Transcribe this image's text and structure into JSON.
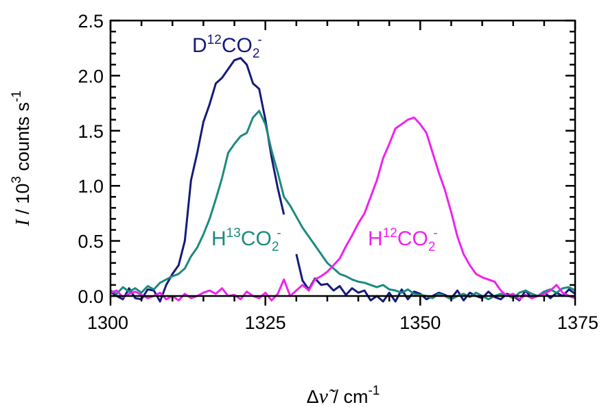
{
  "chart_data": {
    "type": "line",
    "xlim": [
      1300,
      1375
    ],
    "ylim": [
      0,
      2.5
    ],
    "xticks": [
      1300,
      1325,
      1350,
      1375
    ],
    "yticks": [
      0.0,
      0.5,
      1.0,
      1.5,
      2.0,
      2.5
    ],
    "xtick_labels": [
      "1300",
      "1325",
      "1350",
      "1375"
    ],
    "ytick_labels": [
      "0.0",
      "0.5",
      "1.0",
      "1.5",
      "2.0",
      "2.5"
    ],
    "xlabel": {
      "prefix": "Δ",
      "symbol": "ν̃",
      "unit": " / cm",
      "unit_sup": "-1"
    },
    "ylabel": {
      "symbol": "I",
      "pre": " / 10",
      "sup1": "3",
      "mid": " counts s",
      "sup2": "-1"
    },
    "grid": false,
    "legend": "none",
    "series": [
      {
        "name": "D12CO2-",
        "label": {
          "base": "D",
          "sup_iso": "12",
          "mid": "CO",
          "sub": "2",
          "sup_charge": "-"
        },
        "color": "#151a7a",
        "segments": [
          [
            [
              1300,
              0.04
            ],
            [
              1301,
              0.0
            ],
            [
              1302,
              -0.03
            ],
            [
              1303,
              0.07
            ],
            [
              1304,
              -0.02
            ],
            [
              1305,
              -0.03
            ],
            [
              1306,
              0.06
            ],
            [
              1307,
              0.05
            ],
            [
              1308,
              -0.05
            ],
            [
              1309,
              0.1
            ],
            [
              1310,
              0.2
            ],
            [
              1311,
              0.28
            ],
            [
              1312,
              0.5
            ],
            [
              1313,
              1.05
            ],
            [
              1314,
              1.3
            ],
            [
              1315,
              1.58
            ],
            [
              1316,
              1.74
            ],
            [
              1317,
              1.93
            ],
            [
              1318,
              1.98
            ],
            [
              1319,
              2.06
            ],
            [
              1320,
              2.14
            ],
            [
              1321,
              2.16
            ],
            [
              1322,
              2.1
            ],
            [
              1323,
              1.93
            ],
            [
              1324,
              1.88
            ],
            [
              1325,
              1.6
            ],
            [
              1326,
              1.26
            ],
            [
              1327,
              0.98
            ],
            [
              1328,
              0.74
            ]
          ],
          [
            [
              1330,
              0.38
            ],
            [
              1331,
              0.14
            ],
            [
              1332,
              0.06
            ],
            [
              1333,
              0.16
            ],
            [
              1334,
              0.1
            ],
            [
              1335,
              0.11
            ],
            [
              1336,
              0.05
            ],
            [
              1337,
              0.09
            ],
            [
              1338,
              0.01
            ],
            [
              1339,
              0.07
            ],
            [
              1340,
              0.03
            ],
            [
              1341,
              0.05
            ],
            [
              1342,
              -0.04
            ],
            [
              1343,
              0.0
            ],
            [
              1344,
              -0.05
            ],
            [
              1345,
              0.03
            ],
            [
              1346,
              -0.05
            ],
            [
              1347,
              0.06
            ],
            [
              1348,
              -0.03
            ],
            [
              1349,
              0.04
            ],
            [
              1350,
              0.02
            ],
            [
              1351,
              -0.03
            ],
            [
              1352,
              0.0
            ],
            [
              1353,
              0.03
            ],
            [
              1354,
              0.01
            ],
            [
              1355,
              -0.02
            ],
            [
              1356,
              0.05
            ],
            [
              1357,
              -0.04
            ],
            [
              1358,
              0.03
            ],
            [
              1359,
              0.0
            ],
            [
              1360,
              -0.02
            ],
            [
              1361,
              0.04
            ],
            [
              1362,
              -0.01
            ],
            [
              1363,
              -0.03
            ],
            [
              1364,
              0.02
            ],
            [
              1365,
              0.0
            ],
            [
              1366,
              -0.04
            ],
            [
              1367,
              0.05
            ],
            [
              1368,
              -0.02
            ],
            [
              1369,
              0.0
            ],
            [
              1370,
              0.04
            ],
            [
              1371,
              -0.02
            ],
            [
              1372,
              0.03
            ],
            [
              1373,
              0.0
            ],
            [
              1374,
              0.06
            ],
            [
              1375,
              0.02
            ]
          ]
        ]
      },
      {
        "name": "H13CO2-",
        "label": {
          "base": "H",
          "sup_iso": "13",
          "mid": "CO",
          "sub": "2",
          "sup_charge": "-"
        },
        "color": "#1b8a7e",
        "segments": [
          [
            [
              1300,
              0.05
            ],
            [
              1301,
              0.02
            ],
            [
              1302,
              0.08
            ],
            [
              1303,
              0.04
            ],
            [
              1304,
              0.07
            ],
            [
              1305,
              0.03
            ],
            [
              1306,
              0.09
            ],
            [
              1307,
              0.06
            ],
            [
              1308,
              0.12
            ],
            [
              1309,
              0.15
            ],
            [
              1310,
              0.18
            ],
            [
              1311,
              0.2
            ],
            [
              1312,
              0.25
            ],
            [
              1313,
              0.36
            ],
            [
              1314,
              0.44
            ],
            [
              1315,
              0.56
            ],
            [
              1316,
              0.7
            ],
            [
              1317,
              0.88
            ],
            [
              1318,
              1.07
            ],
            [
              1319,
              1.3
            ],
            [
              1320,
              1.38
            ],
            [
              1321,
              1.45
            ],
            [
              1322,
              1.48
            ],
            [
              1323,
              1.62
            ],
            [
              1324,
              1.68
            ],
            [
              1325,
              1.56
            ],
            [
              1326,
              1.32
            ],
            [
              1327,
              1.12
            ],
            [
              1328,
              0.9
            ],
            [
              1329,
              0.82
            ],
            [
              1330,
              0.72
            ],
            [
              1331,
              0.62
            ],
            [
              1332,
              0.54
            ],
            [
              1333,
              0.46
            ],
            [
              1334,
              0.38
            ],
            [
              1335,
              0.3
            ],
            [
              1336,
              0.25
            ],
            [
              1337,
              0.2
            ],
            [
              1338,
              0.18
            ],
            [
              1339,
              0.15
            ],
            [
              1340,
              0.13
            ],
            [
              1341,
              0.12
            ],
            [
              1342,
              0.1
            ],
            [
              1343,
              0.08
            ],
            [
              1344,
              0.1
            ],
            [
              1345,
              0.06
            ],
            [
              1346,
              0.05
            ],
            [
              1347,
              0.03
            ],
            [
              1348,
              0.06
            ],
            [
              1349,
              0.02
            ],
            [
              1350,
              0.01
            ],
            [
              1351,
              0.0
            ],
            [
              1352,
              -0.02
            ],
            [
              1353,
              0.02
            ],
            [
              1354,
              0.0
            ],
            [
              1355,
              -0.03
            ],
            [
              1356,
              0.0
            ],
            [
              1357,
              0.02
            ],
            [
              1358,
              -0.01
            ],
            [
              1359,
              0.03
            ],
            [
              1360,
              0.0
            ],
            [
              1361,
              -0.03
            ],
            [
              1362,
              0.0
            ],
            [
              1363,
              0.02
            ],
            [
              1364,
              0.01
            ],
            [
              1365,
              -0.02
            ],
            [
              1366,
              0.03
            ],
            [
              1367,
              0.05
            ],
            [
              1368,
              0.02
            ],
            [
              1369,
              0.0
            ],
            [
              1370,
              0.04
            ],
            [
              1371,
              0.06
            ],
            [
              1372,
              0.03
            ],
            [
              1373,
              0.07
            ],
            [
              1374,
              0.08
            ],
            [
              1375,
              0.05
            ]
          ]
        ]
      },
      {
        "name": "H12CO2-",
        "label": {
          "base": "H",
          "sup_iso": "12",
          "mid": "CO",
          "sub": "2",
          "sup_charge": "-"
        },
        "color": "#ee22ee",
        "segments": [
          [
            [
              1300,
              0.03
            ],
            [
              1301,
              0.05
            ],
            [
              1302,
              -0.01
            ],
            [
              1303,
              0.02
            ],
            [
              1304,
              0.04
            ],
            [
              1305,
              0.01
            ],
            [
              1306,
              -0.02
            ],
            [
              1307,
              0.0
            ],
            [
              1308,
              0.03
            ],
            [
              1309,
              -0.03
            ],
            [
              1310,
              0.0
            ],
            [
              1311,
              -0.04
            ],
            [
              1312,
              0.02
            ],
            [
              1313,
              -0.02
            ],
            [
              1314,
              0.0
            ],
            [
              1315,
              0.03
            ],
            [
              1316,
              0.05
            ],
            [
              1317,
              0.02
            ],
            [
              1318,
              0.07
            ],
            [
              1319,
              0.0
            ],
            [
              1320,
              0.01
            ],
            [
              1321,
              -0.03
            ],
            [
              1322,
              0.04
            ],
            [
              1323,
              0.0
            ],
            [
              1324,
              -0.02
            ],
            [
              1325,
              0.03
            ],
            [
              1326,
              -0.04
            ],
            [
              1327,
              0.02
            ],
            [
              1328,
              0.15
            ],
            [
              1329,
              0.0
            ],
            [
              1330,
              0.05
            ],
            [
              1331,
              0.1
            ],
            [
              1332,
              0.05
            ],
            [
              1333,
              0.15
            ],
            [
              1334,
              0.18
            ],
            [
              1335,
              0.22
            ],
            [
              1336,
              0.28
            ],
            [
              1337,
              0.34
            ],
            [
              1338,
              0.45
            ],
            [
              1339,
              0.55
            ],
            [
              1340,
              0.66
            ],
            [
              1341,
              0.75
            ],
            [
              1342,
              0.9
            ],
            [
              1343,
              1.05
            ],
            [
              1344,
              1.25
            ],
            [
              1345,
              1.38
            ],
            [
              1346,
              1.52
            ],
            [
              1347,
              1.56
            ],
            [
              1348,
              1.6
            ],
            [
              1349,
              1.62
            ],
            [
              1350,
              1.56
            ],
            [
              1351,
              1.48
            ],
            [
              1352,
              1.3
            ],
            [
              1353,
              1.12
            ],
            [
              1354,
              0.96
            ],
            [
              1355,
              0.76
            ],
            [
              1356,
              0.54
            ],
            [
              1357,
              0.38
            ],
            [
              1358,
              0.28
            ],
            [
              1359,
              0.2
            ],
            [
              1360,
              0.17
            ],
            [
              1361,
              0.15
            ],
            [
              1362,
              0.13
            ],
            [
              1363,
              0.05
            ],
            [
              1364,
              0.0
            ],
            [
              1365,
              0.02
            ],
            [
              1366,
              -0.03
            ],
            [
              1367,
              0.01
            ],
            [
              1368,
              -0.02
            ],
            [
              1369,
              0.0
            ],
            [
              1370,
              0.02
            ],
            [
              1371,
              0.05
            ],
            [
              1372,
              0.1
            ],
            [
              1373,
              0.03
            ],
            [
              1374,
              0.0
            ],
            [
              1375,
              -0.02
            ]
          ]
        ]
      }
    ]
  }
}
